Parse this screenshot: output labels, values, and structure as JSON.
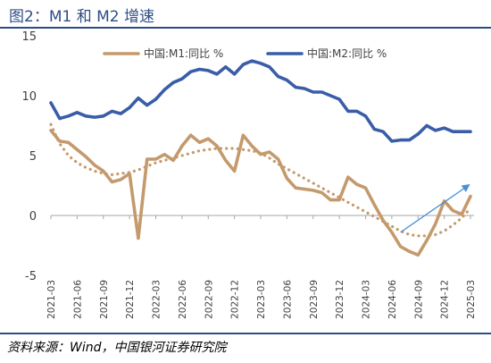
{
  "title": "图2：M1 和 M2 增速",
  "source": "资料来源：Wind，中国银河证券研究院",
  "chart_data": {
    "type": "line",
    "ylim": [
      -5,
      15
    ],
    "yticks": [
      -5,
      0,
      5,
      10,
      15
    ],
    "grid": false,
    "legend": "top",
    "x": [
      "2021-03",
      "2021-04",
      "2021-05",
      "2021-06",
      "2021-07",
      "2021-08",
      "2021-09",
      "2021-10",
      "2021-11",
      "2021-12",
      "2022-01",
      "2022-02",
      "2022-03",
      "2022-04",
      "2022-05",
      "2022-06",
      "2022-07",
      "2022-08",
      "2022-09",
      "2022-10",
      "2022-11",
      "2022-12",
      "2023-01",
      "2023-02",
      "2023-03",
      "2023-04",
      "2023-05",
      "2023-06",
      "2023-07",
      "2023-08",
      "2023-09",
      "2023-10",
      "2023-11",
      "2023-12",
      "2024-01",
      "2024-02",
      "2024-03",
      "2024-04",
      "2024-05",
      "2024-06",
      "2024-07",
      "2024-08",
      "2024-09",
      "2024-10",
      "2024-11",
      "2024-12",
      "2025-01",
      "2025-02",
      "2025-03"
    ],
    "xtick_labels": [
      "2021-03",
      "2021-06",
      "2021-09",
      "2021-12",
      "2022-03",
      "2022-06",
      "2022-09",
      "2022-12",
      "2023-03",
      "2023-06",
      "2023-09",
      "2023-12",
      "2024-03",
      "2024-06",
      "2024-09",
      "2024-12",
      "2025-03"
    ],
    "series": [
      {
        "name": "中国:M1:同比 %",
        "color": "#c49a6c",
        "style": "solid",
        "values": [
          7.1,
          6.2,
          6.1,
          5.5,
          4.9,
          4.2,
          3.7,
          2.8,
          3.0,
          3.5,
          -1.9,
          4.7,
          4.7,
          5.1,
          4.6,
          5.8,
          6.7,
          6.1,
          6.4,
          5.8,
          4.6,
          3.7,
          6.7,
          5.8,
          5.1,
          5.3,
          4.7,
          3.1,
          2.3,
          2.2,
          2.1,
          1.9,
          1.3,
          1.3,
          3.2,
          2.6,
          2.3,
          0.9,
          -0.4,
          -1.4,
          -2.6,
          -3.0,
          -3.3,
          -2.1,
          -0.7,
          1.2,
          0.4,
          0.1,
          1.6
        ]
      },
      {
        "name": "中国:M2:同比 %",
        "color": "#3a5da8",
        "style": "solid",
        "values": [
          9.4,
          8.1,
          8.3,
          8.6,
          8.3,
          8.2,
          8.3,
          8.7,
          8.5,
          9.0,
          9.8,
          9.2,
          9.7,
          10.5,
          11.1,
          11.4,
          12.0,
          12.2,
          12.1,
          11.8,
          12.4,
          11.8,
          12.6,
          12.9,
          12.7,
          12.4,
          11.6,
          11.3,
          10.7,
          10.6,
          10.3,
          10.3,
          10.0,
          9.7,
          8.7,
          8.7,
          8.3,
          7.2,
          7.0,
          6.2,
          6.3,
          6.3,
          6.8,
          7.5,
          7.1,
          7.3,
          7.0,
          7.0,
          7.0
        ]
      },
      {
        "color": "#c49a6c",
        "style": "dotted",
        "values": [
          7.6,
          6.0,
          5.0,
          4.4,
          4.0,
          3.7,
          3.5,
          3.4,
          3.5,
          3.6,
          3.8,
          4.1,
          4.4,
          4.6,
          4.8,
          5.0,
          5.2,
          5.4,
          5.5,
          5.6,
          5.6,
          5.6,
          5.5,
          5.4,
          5.2,
          4.8,
          4.3,
          3.9,
          3.5,
          3.1,
          2.7,
          2.3,
          1.9,
          1.5,
          1.1,
          0.7,
          0.3,
          -0.1,
          -0.5,
          -0.9,
          -1.3,
          -1.6,
          -1.7,
          -1.7,
          -1.6,
          -1.3,
          -0.8,
          -0.2,
          0.6
        ]
      }
    ],
    "annotation": {
      "type": "arrow",
      "color": "#4a8fd6",
      "from": [
        "2024-07",
        -1.4
      ],
      "to": [
        "2025-03",
        2.6
      ]
    }
  }
}
